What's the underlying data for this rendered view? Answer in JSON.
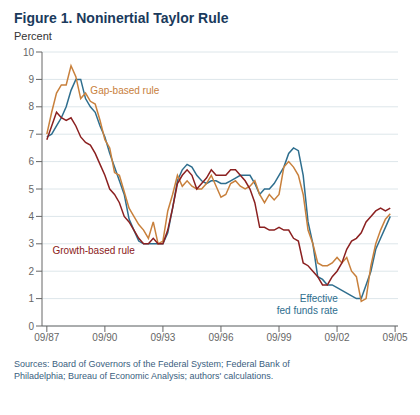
{
  "chart_data": {
    "type": "line",
    "title": "Figure 1. Noninertial Taylor Rule",
    "ylabel": "Percent",
    "source": "Sources: Board of Governors of the Federal System; Federal Bank of\nPhiladelphia; Bureau of Economic Analysis; authors' calculations.",
    "x": [
      1987.75,
      1988.0,
      1988.25,
      1988.5,
      1988.75,
      1989.0,
      1989.25,
      1989.5,
      1989.75,
      1990.0,
      1990.25,
      1990.5,
      1990.75,
      1991.0,
      1991.25,
      1991.5,
      1991.75,
      1992.0,
      1992.25,
      1992.5,
      1992.75,
      1993.0,
      1993.25,
      1993.5,
      1993.75,
      1994.0,
      1994.25,
      1994.5,
      1994.75,
      1995.0,
      1995.25,
      1995.5,
      1995.75,
      1996.0,
      1996.25,
      1996.5,
      1996.75,
      1997.0,
      1997.25,
      1997.5,
      1997.75,
      1998.0,
      1998.25,
      1998.5,
      1998.75,
      1999.0,
      1999.25,
      1999.5,
      1999.75,
      2000.0,
      2000.25,
      2000.5,
      2000.75,
      2001.0,
      2001.25,
      2001.5,
      2001.75,
      2002.0,
      2002.25,
      2002.5,
      2002.75,
      2003.0,
      2003.25,
      2003.5,
      2003.75,
      2004.0,
      2004.25,
      2004.5,
      2004.75,
      2005.0,
      2005.25,
      2005.5
    ],
    "xlim": [
      1987.5,
      2005.9
    ],
    "xticks": [
      {
        "value": 1987.75,
        "label": "09/87"
      },
      {
        "value": 1990.75,
        "label": "09/90"
      },
      {
        "value": 1993.75,
        "label": "09/93"
      },
      {
        "value": 1996.75,
        "label": "09/96"
      },
      {
        "value": 1999.75,
        "label": "09/99"
      },
      {
        "value": 2002.75,
        "label": "09/02"
      },
      {
        "value": 2005.75,
        "label": "09/05"
      }
    ],
    "ylim": [
      0,
      10
    ],
    "yticks": [
      0,
      1,
      2,
      3,
      4,
      5,
      6,
      7,
      8,
      9,
      10
    ],
    "grid": true,
    "series": [
      {
        "name": "Effective\nfed funds rate",
        "color": "#2E6E8E",
        "values": [
          6.9,
          7.0,
          7.3,
          7.6,
          8.0,
          8.6,
          9.0,
          9.0,
          8.3,
          8.0,
          7.8,
          7.3,
          6.9,
          6.3,
          5.8,
          5.3,
          4.8,
          3.9,
          3.5,
          3.1,
          3.0,
          3.0,
          3.0,
          3.0,
          3.0,
          3.4,
          4.3,
          5.3,
          5.7,
          5.9,
          5.8,
          5.5,
          5.3,
          5.2,
          5.3,
          5.3,
          5.2,
          5.2,
          5.3,
          5.4,
          5.5,
          5.5,
          5.5,
          5.2,
          4.8,
          5.0,
          5.0,
          5.2,
          5.5,
          5.8,
          6.3,
          6.5,
          6.4,
          5.5,
          3.8,
          3.0,
          1.8,
          1.7,
          1.5,
          1.5,
          1.4,
          1.3,
          1.2,
          1.1,
          1.0,
          1.0,
          1.5,
          2.0,
          2.8,
          3.2,
          3.6,
          4.0
        ]
      },
      {
        "name": "Gap-based rule",
        "color": "#C8803C",
        "values": [
          7.0,
          7.8,
          8.5,
          8.8,
          8.8,
          9.5,
          9.1,
          8.3,
          8.5,
          8.2,
          8.1,
          7.5,
          6.8,
          6.5,
          5.6,
          5.5,
          4.9,
          4.3,
          4.0,
          3.7,
          3.5,
          3.2,
          3.8,
          3.0,
          3.1,
          4.2,
          4.8,
          5.5,
          5.1,
          5.3,
          5.1,
          5.0,
          5.0,
          5.2,
          5.5,
          5.1,
          4.7,
          4.8,
          5.2,
          5.3,
          5.1,
          5.0,
          5.1,
          5.3,
          4.8,
          4.5,
          4.8,
          4.6,
          4.8,
          5.8,
          6.0,
          5.8,
          5.5,
          4.8,
          3.5,
          3.0,
          2.3,
          2.2,
          2.2,
          2.3,
          2.5,
          2.3,
          2.5,
          2.0,
          1.8,
          0.9,
          1.0,
          2.2,
          3.0,
          3.5,
          3.9,
          4.1
        ]
      },
      {
        "name": "Growth-based rule",
        "color": "#8B2020",
        "values": [
          6.8,
          7.3,
          7.8,
          7.6,
          7.5,
          7.6,
          7.3,
          6.9,
          6.7,
          6.6,
          6.3,
          5.9,
          5.5,
          5.0,
          4.8,
          4.5,
          4.0,
          3.8,
          3.5,
          3.2,
          3.0,
          3.0,
          3.2,
          3.0,
          3.0,
          3.5,
          4.3,
          5.2,
          5.5,
          5.7,
          5.5,
          5.0,
          5.2,
          5.4,
          5.7,
          5.5,
          5.5,
          5.5,
          5.7,
          5.7,
          5.5,
          5.3,
          5.0,
          4.5,
          3.6,
          3.6,
          3.5,
          3.5,
          3.6,
          3.5,
          3.5,
          3.2,
          3.1,
          2.3,
          2.2,
          2.0,
          1.8,
          1.5,
          1.5,
          1.8,
          2.0,
          2.3,
          2.8,
          3.1,
          3.2,
          3.4,
          3.8,
          4.0,
          4.2,
          4.3,
          4.2,
          4.3
        ]
      }
    ]
  }
}
